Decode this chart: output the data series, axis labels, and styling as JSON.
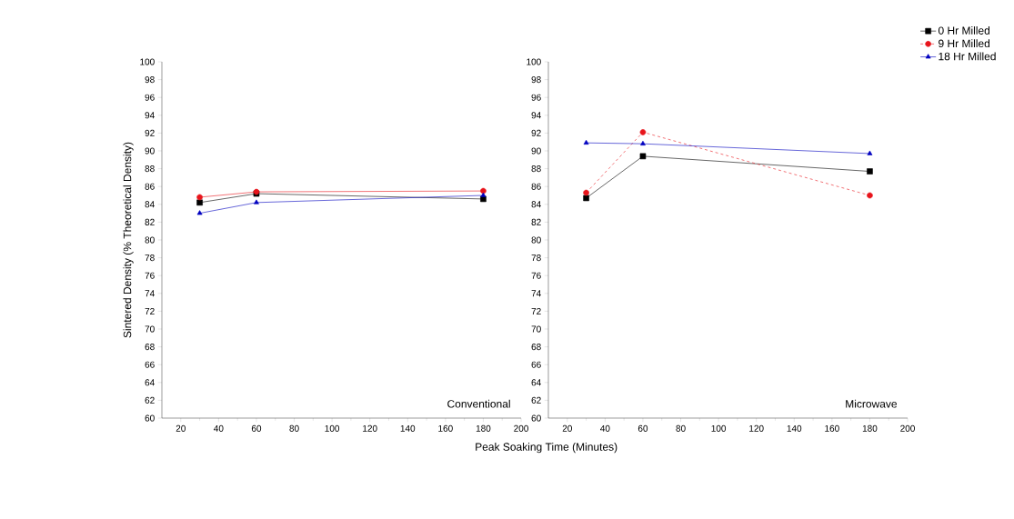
{
  "chart_data": [
    {
      "type": "line",
      "ylabel": "Sintered Density (% Theoretical Density)",
      "xlabel": "Peak Soaking Time (Minutes)",
      "xlim": [
        10,
        200
      ],
      "xticks": [
        20,
        40,
        60,
        80,
        100,
        120,
        140,
        160,
        180,
        200
      ],
      "ylim": [
        60,
        100
      ],
      "yticks": [
        60,
        62,
        64,
        66,
        68,
        70,
        72,
        74,
        76,
        78,
        80,
        82,
        84,
        86,
        88,
        90,
        92,
        94,
        96,
        98,
        100
      ],
      "x": [
        30,
        60,
        180
      ],
      "annotations": [
        "Conventional"
      ],
      "legend": false,
      "series": [
        {
          "color": "#000000",
          "marker": "square",
          "line_style": "solid",
          "values": [
            84.2,
            85.2,
            84.6
          ]
        },
        {
          "color": "#e8141b",
          "marker": "circle",
          "line_style": "solid",
          "values": [
            84.8,
            85.4,
            85.5
          ]
        },
        {
          "color": "#0000c0",
          "marker": "triangle",
          "line_style": "solid",
          "values": [
            83.0,
            84.2,
            85.0
          ]
        }
      ]
    },
    {
      "type": "line",
      "xlim": [
        10,
        200
      ],
      "xticks": [
        20,
        40,
        60,
        80,
        100,
        120,
        140,
        160,
        180,
        200
      ],
      "ylim": [
        60,
        100
      ],
      "yticks": [
        60,
        62,
        64,
        66,
        68,
        70,
        72,
        74,
        76,
        78,
        80,
        82,
        84,
        86,
        88,
        90,
        92,
        94,
        96,
        98,
        100
      ],
      "x": [
        30,
        60,
        180
      ],
      "annotations": [
        "Microwave"
      ],
      "legend": "top right",
      "series": [
        {
          "name": "0 Hr Milled",
          "color": "#000000",
          "marker": "square",
          "line_style": "solid",
          "values": [
            84.7,
            89.4,
            87.7
          ]
        },
        {
          "name": "9 Hr Milled",
          "color": "#e8141b",
          "marker": "circle",
          "line_style": "dashed",
          "values": [
            85.3,
            92.1,
            85.0
          ]
        },
        {
          "name": "18 Hr Milled",
          "color": "#0000c0",
          "marker": "triangle",
          "line_style": "solid",
          "values": [
            90.9,
            90.8,
            89.7
          ]
        }
      ]
    }
  ]
}
